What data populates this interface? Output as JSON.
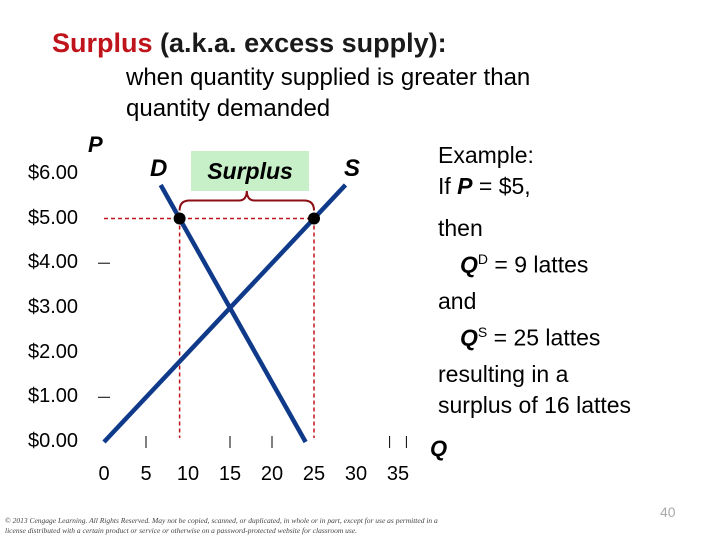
{
  "title": {
    "highlight": "Surplus",
    "rest": " (a.k.a. excess supply):"
  },
  "subtitle": "when quantity supplied is greater than quantity demanded",
  "chart_data": {
    "type": "line",
    "ylabel": "P",
    "xlabel": "Q",
    "y_ticks": [
      "$0.00",
      "$1.00",
      "$2.00",
      "$3.00",
      "$4.00",
      "$5.00",
      "$6.00"
    ],
    "x_ticks": [
      "0",
      "5",
      "10",
      "15",
      "20",
      "25",
      "30",
      "35"
    ],
    "xlim": [
      0,
      35
    ],
    "ylim": [
      0,
      6
    ],
    "series": [
      {
        "name": "D",
        "points": [
          [
            6.75,
            5.75
          ],
          [
            24,
            0
          ]
        ]
      },
      {
        "name": "S",
        "points": [
          [
            0,
            0
          ],
          [
            28.75,
            5.75
          ]
        ]
      }
    ],
    "price": 5,
    "points": [
      [
        9,
        5
      ],
      [
        25,
        5
      ]
    ],
    "annotation": "Surplus",
    "colors": {
      "curves": "#0f3a8a",
      "dashed": "#c0141c",
      "brace": "#8b0f14",
      "label_bg": "#c8f0c8"
    }
  },
  "example": {
    "line1": "Example:",
    "line2_pre": "If ",
    "line2_var": "P",
    "line2_post": " = $5,",
    "line3": "then",
    "qd_var": "Q",
    "qd_sup": "D",
    "qd_rest": " = 9 lattes",
    "line5": "and",
    "qs_var": "Q",
    "qs_sup": "S",
    "qs_rest": " = 25 lattes",
    "line7": "resulting in a",
    "line8": "surplus of 16 lattes"
  },
  "copyright": "© 2013 Cengage Learning. All Rights Reserved. May not be copied, scanned, or duplicated, in whole or in part, except for use as permitted in a license distributed with a certain product or service or otherwise on a password-protected website for classroom use.",
  "page_number": "40"
}
